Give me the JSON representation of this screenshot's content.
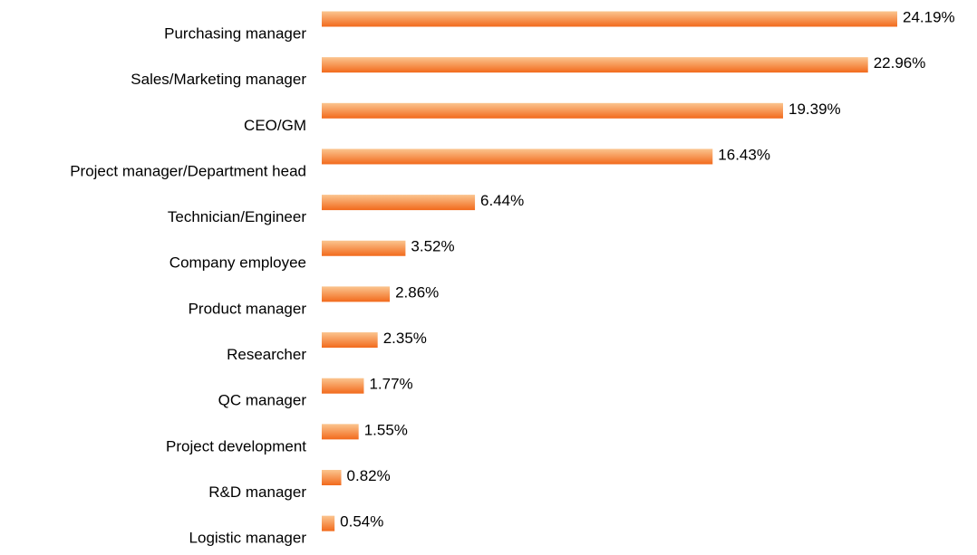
{
  "chart_data": {
    "type": "bar",
    "orientation": "horizontal",
    "categories": [
      "Purchasing manager",
      "Sales/Marketing manager",
      "CEO/GM",
      "Project manager/Department head",
      "Technician/Engineer",
      "Company employee",
      "Product manager",
      "Researcher",
      "QC manager",
      "Project development",
      "R&D manager",
      "Logistic manager"
    ],
    "values": [
      24.19,
      22.96,
      19.39,
      16.43,
      6.44,
      3.52,
      2.86,
      2.35,
      1.77,
      1.55,
      0.82,
      0.54
    ],
    "value_labels": [
      "24.19%",
      "22.96%",
      "19.39%",
      "16.43%",
      "6.44%",
      "3.52%",
      "2.86%",
      "2.35%",
      "1.77%",
      "1.55%",
      "0.82%",
      "0.54%"
    ],
    "color": "#f26a1c"
  }
}
